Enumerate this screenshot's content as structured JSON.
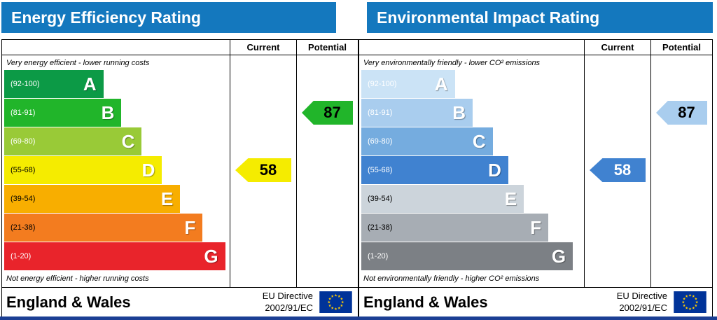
{
  "theme": {
    "header_color": "#1478be",
    "bottom_bar_color": "#1c3f94",
    "border_color": "#000000",
    "eu_flag_blue": "#003399",
    "eu_flag_star_yellow": "#ffcc00"
  },
  "panels": [
    {
      "title": "Energy Efficiency Rating",
      "columns": {
        "current": "Current",
        "potential": "Potential"
      },
      "top_note": "Very energy efficient - lower running costs",
      "bottom_note": "Not energy efficient - higher running costs",
      "bands": [
        {
          "letter": "A",
          "range": "(92-100)",
          "width_pct": 44,
          "color": "#0c9a46",
          "range_text_color": "#ffffff",
          "letter_color": "#ffffff"
        },
        {
          "letter": "B",
          "range": "(81-91)",
          "width_pct": 52,
          "color": "#21b52a",
          "range_text_color": "#ffffff",
          "letter_color": "#ffffff"
        },
        {
          "letter": "C",
          "range": "(69-80)",
          "width_pct": 61,
          "color": "#99ca37",
          "range_text_color": "#ffffff",
          "letter_color": "#ffffff"
        },
        {
          "letter": "D",
          "range": "(55-68)",
          "width_pct": 70,
          "color": "#f5ec00",
          "range_text_color": "#000000",
          "letter_color": "#ffffff"
        },
        {
          "letter": "E",
          "range": "(39-54)",
          "width_pct": 78,
          "color": "#f8ae00",
          "range_text_color": "#000000",
          "letter_color": "#ffffff"
        },
        {
          "letter": "F",
          "range": "(21-38)",
          "width_pct": 88,
          "color": "#f37c1f",
          "range_text_color": "#000000",
          "letter_color": "#ffffff"
        },
        {
          "letter": "G",
          "range": "(1-20)",
          "width_pct": 98,
          "color": "#e9242b",
          "range_text_color": "#ffffff",
          "letter_color": "#ffffff"
        }
      ],
      "current": {
        "value": "58",
        "band": "D",
        "band_index": 3,
        "color": "#f5ec00",
        "text_color": "#000000"
      },
      "potential": {
        "value": "87",
        "band": "B",
        "band_index": 1,
        "color": "#21b52a",
        "text_color": "#000000"
      },
      "footer": {
        "region": "England & Wales",
        "directive_line1": "EU Directive",
        "directive_line2": "2002/91/EC"
      }
    },
    {
      "title": "Environmental Impact Rating",
      "columns": {
        "current": "Current",
        "potential": "Potential"
      },
      "top_note": "Very environmentally friendly - lower CO² emissions",
      "bottom_note": "Not environmentally friendly - higher CO² emissions",
      "bands": [
        {
          "letter": "A",
          "range": "(92-100)",
          "width_pct": 42,
          "color": "#cbe3f6",
          "range_text_color": "#ffffff",
          "letter_color": "#ffffff"
        },
        {
          "letter": "B",
          "range": "(81-91)",
          "width_pct": 50,
          "color": "#a9cdee",
          "range_text_color": "#ffffff",
          "letter_color": "#ffffff"
        },
        {
          "letter": "C",
          "range": "(69-80)",
          "width_pct": 59,
          "color": "#75acdf",
          "range_text_color": "#ffffff",
          "letter_color": "#ffffff"
        },
        {
          "letter": "D",
          "range": "(55-68)",
          "width_pct": 66,
          "color": "#4082d0",
          "range_text_color": "#ffffff",
          "letter_color": "#ffffff"
        },
        {
          "letter": "E",
          "range": "(39-54)",
          "width_pct": 73,
          "color": "#ccd4db",
          "range_text_color": "#000000",
          "letter_color": "#ffffff"
        },
        {
          "letter": "F",
          "range": "(21-38)",
          "width_pct": 84,
          "color": "#a7adb4",
          "range_text_color": "#000000",
          "letter_color": "#ffffff"
        },
        {
          "letter": "G",
          "range": "(1-20)",
          "width_pct": 95,
          "color": "#7c8085",
          "range_text_color": "#ffffff",
          "letter_color": "#ffffff"
        }
      ],
      "current": {
        "value": "58",
        "band": "D",
        "band_index": 3,
        "color": "#4082d0",
        "text_color": "#ffffff"
      },
      "potential": {
        "value": "87",
        "band": "B",
        "band_index": 1,
        "color": "#a9cdee",
        "text_color": "#000000"
      },
      "footer": {
        "region": "England & Wales",
        "directive_line1": "EU Directive",
        "directive_line2": "2002/91/EC"
      }
    }
  ],
  "chart_data": [
    {
      "type": "bar",
      "orientation": "horizontal",
      "title": "Energy Efficiency Rating",
      "categories": [
        "A (92-100)",
        "B (81-91)",
        "C (69-80)",
        "D (55-68)",
        "E (39-54)",
        "F (21-38)",
        "G (1-20)"
      ],
      "series": [
        {
          "name": "Current",
          "values": [
            58
          ],
          "band": "D"
        },
        {
          "name": "Potential",
          "values": [
            87
          ],
          "band": "B"
        }
      ],
      "value_range": [
        1,
        100
      ],
      "annotations": [
        "Very energy efficient - lower running costs",
        "Not energy efficient - higher running costs",
        "England & Wales",
        "EU Directive 2002/91/EC"
      ]
    },
    {
      "type": "bar",
      "orientation": "horizontal",
      "title": "Environmental Impact Rating",
      "categories": [
        "A (92-100)",
        "B (81-91)",
        "C (69-80)",
        "D (55-68)",
        "E (39-54)",
        "F (21-38)",
        "G (1-20)"
      ],
      "series": [
        {
          "name": "Current",
          "values": [
            58
          ],
          "band": "D"
        },
        {
          "name": "Potential",
          "values": [
            87
          ],
          "band": "B"
        }
      ],
      "value_range": [
        1,
        100
      ],
      "annotations": [
        "Very environmentally friendly - lower CO² emissions",
        "Not environmentally friendly - higher CO² emissions",
        "England & Wales",
        "EU Directive 2002/91/EC"
      ]
    }
  ]
}
